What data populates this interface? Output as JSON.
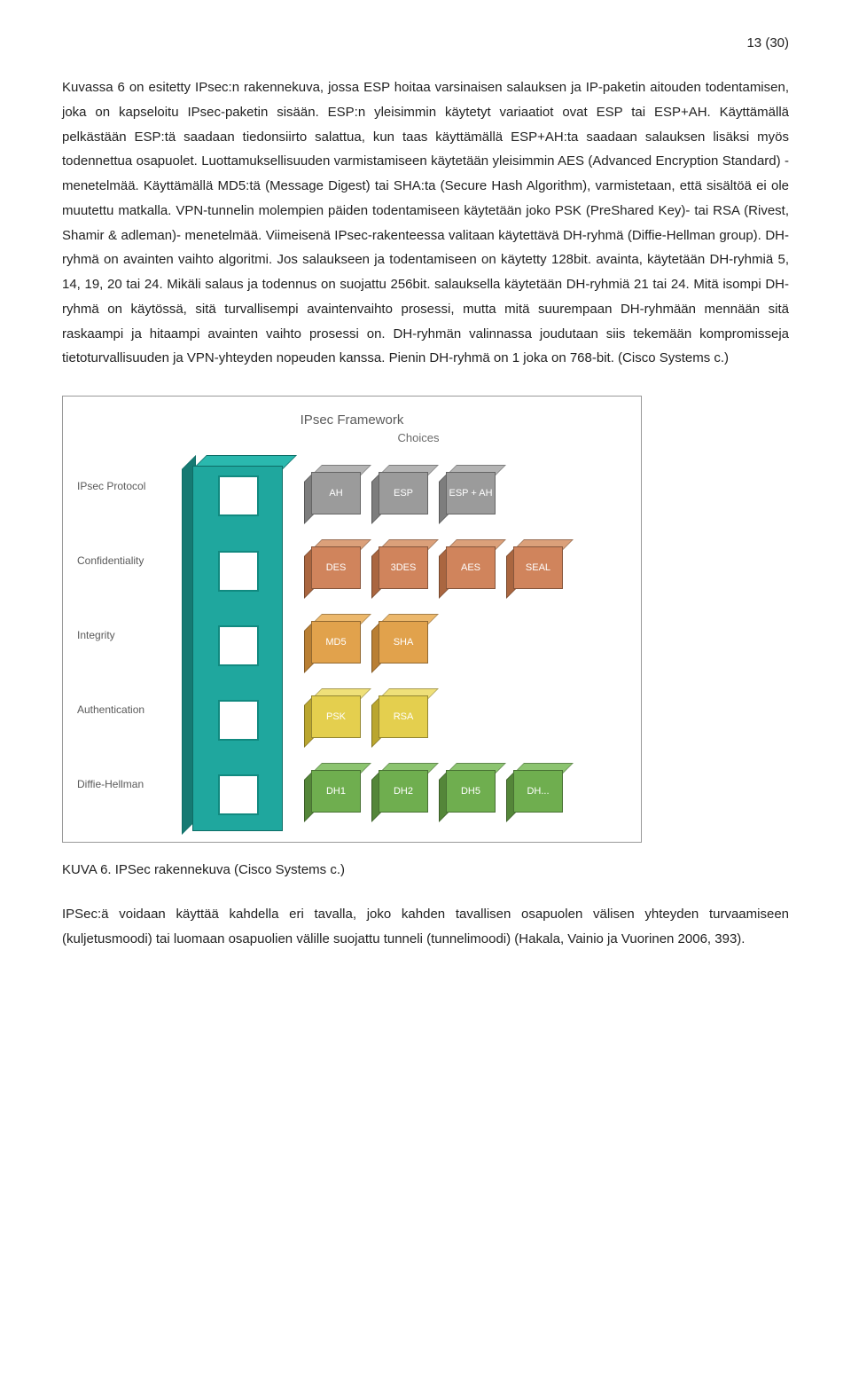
{
  "page_number": "13 (30)",
  "body_paragraph": "Kuvassa 6 on esitetty IPsec:n rakennekuva, jossa ESP hoitaa varsinaisen salauksen ja IP-paketin aitouden todentamisen, joka on kapseloitu IPsec-paketin sisään. ESP:n yleisimmin käytetyt variaatiot ovat ESP tai ESP+AH. Käyttämällä pelkästään ESP:tä saadaan tiedonsiirto salattua, kun taas käyttämällä ESP+AH:ta saadaan salauksen lisäksi myös todennettua osapuolet. Luottamuksellisuuden varmistamiseen käytetään yleisimmin AES (Advanced Encryption Standard) -menetelmää. Käyttämällä MD5:tä (Message Digest) tai SHA:ta (Secure Hash Algorithm), varmistetaan, että sisältöä ei ole muutettu matkalla. VPN-tunnelin molempien päiden todentamiseen käytetään joko PSK (PreShared Key)- tai RSA (Rivest, Shamir & adleman)- menetelmää. Viimeisenä IPsec-rakenteessa valitaan käytettävä DH-ryhmä (Diffie-Hellman group). DH-ryhmä on avainten vaihto algoritmi. Jos salaukseen ja todentamiseen on käytetty 128bit. avainta, käytetään DH-ryhmiä 5, 14, 19, 20 tai 24. Mikäli salaus ja todennus on suojattu 256bit. salauksella käytetään DH-ryhmiä 21 tai 24. Mitä isompi DH-ryhmä on käytössä, sitä turvallisempi avaintenvaihto prosessi, mutta mitä suurempaan DH-ryhmään mennään sitä raskaampi ja hitaampi avainten vaihto prosessi on. DH-ryhmän valinnassa joudutaan siis tekemään kompromisseja tietoturvallisuuden ja VPN-yhteyden nopeuden kanssa. Pienin DH-ryhmä on 1 joka on 768-bit. (Cisco Systems c.)",
  "figure": {
    "title": "IPsec Framework",
    "choices_label": "Choices",
    "row_labels": [
      "IPsec Protocol",
      "Confidentiality",
      "Integrity",
      "Authentication",
      "Diffie-Hellman"
    ],
    "rows": [
      {
        "items": [
          "AH",
          "ESP",
          "ESP + AH"
        ],
        "color": "#9b9b9b",
        "top": "#b4b4b4",
        "side": "#7d7d7d"
      },
      {
        "items": [
          "DES",
          "3DES",
          "AES",
          "SEAL"
        ],
        "color": "#d0845c",
        "top": "#dba07a",
        "side": "#aa6640"
      },
      {
        "items": [
          "MD5",
          "SHA"
        ],
        "color": "#e1a24c",
        "top": "#ecb86c",
        "side": "#b97f33"
      },
      {
        "items": [
          "PSK",
          "RSA"
        ],
        "color": "#e4cf4e",
        "top": "#efe079",
        "side": "#baa62f"
      },
      {
        "items": [
          "DH1",
          "DH2",
          "DH5",
          "DH..."
        ],
        "color": "#6fae4f",
        "top": "#8cc470",
        "side": "#548639"
      }
    ],
    "tower_colors": {
      "front": "#1fa79e",
      "side": "#167a73",
      "top": "#2ab8ae",
      "slot_border": "#118a80"
    }
  },
  "caption": "KUVA 6. IPSec rakennekuva (Cisco Systems c.)",
  "bottom_paragraph": "IPSec:ä voidaan käyttää kahdella eri tavalla, joko kahden tavallisen osapuolen välisen yhteyden turvaamiseen (kuljetusmoodi) tai luomaan osapuolien välille suojattu tunneli (tunnelimoodi) (Hakala, Vainio ja Vuorinen 2006, 393)."
}
